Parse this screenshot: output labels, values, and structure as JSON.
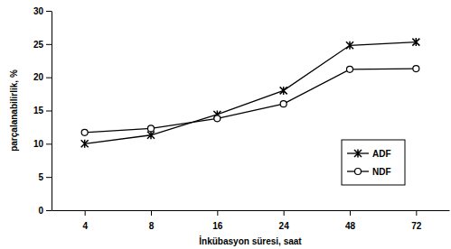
{
  "chart_data": {
    "type": "line",
    "x_label": "İnkübasyon süresi, saat",
    "y_label": "parçalanabilirlik, %",
    "categories": [
      "4",
      "8",
      "16",
      "24",
      "48",
      "72"
    ],
    "series": [
      {
        "name": "ADF",
        "color": "#000000",
        "marker": "x",
        "line_style": "solid",
        "values": [
          10.0,
          11.3,
          14.4,
          18.0,
          24.8,
          25.3
        ]
      },
      {
        "name": "NDF",
        "color": "#000000",
        "marker": "circle",
        "line_style": "solid",
        "values": [
          11.7,
          12.3,
          13.8,
          16.0,
          21.2,
          21.3
        ]
      }
    ],
    "ylim": [
      0,
      30
    ],
    "yticks": [
      0,
      5,
      10,
      15,
      20,
      25,
      30
    ],
    "grid": false,
    "legend": "right"
  }
}
